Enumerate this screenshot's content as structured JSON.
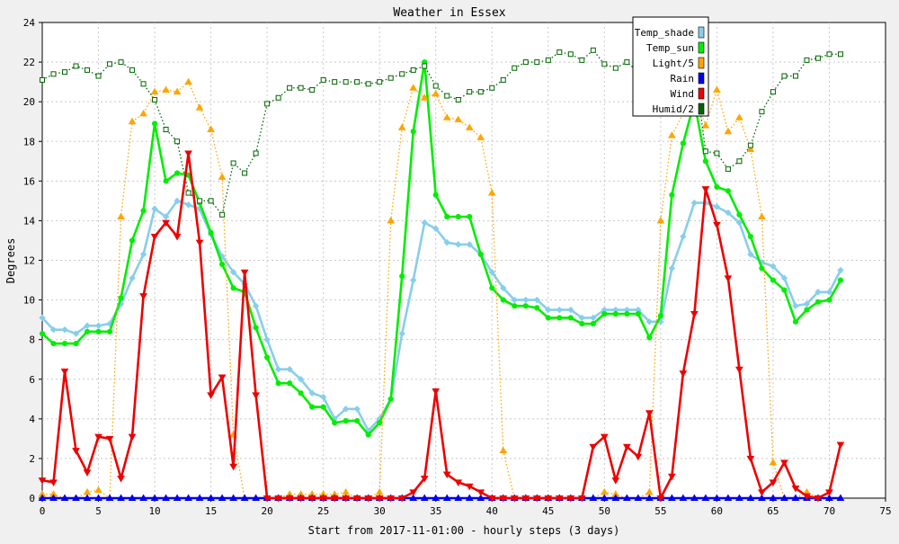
{
  "chart_data": {
    "type": "line",
    "title": "Weather in Essex",
    "xlabel": "Start from 2017-11-01:00 - hourly steps (3 days)",
    "ylabel": "Degrees",
    "xlim": [
      0,
      75
    ],
    "ylim": [
      0,
      24
    ],
    "x_ticks": [
      0,
      5,
      10,
      15,
      20,
      25,
      30,
      35,
      40,
      45,
      50,
      55,
      60,
      65,
      70,
      75
    ],
    "y_ticks": [
      0,
      2,
      4,
      6,
      8,
      10,
      12,
      14,
      16,
      18,
      20,
      22,
      24
    ],
    "grid": true,
    "legend_position": "top-right",
    "series": [
      {
        "name": "Temp_shade",
        "color": "#87ceeb",
        "line": "solid",
        "marker": "star",
        "values": [
          9.1,
          8.5,
          8.5,
          8.3,
          8.7,
          8.7,
          8.8,
          9.8,
          11.1,
          12.3,
          14.6,
          14.2,
          15.0,
          14.8,
          14.6,
          13.3,
          12.2,
          11.4,
          10.8,
          9.7,
          8.0,
          6.5,
          6.5,
          6.0,
          5.3,
          5.1,
          4.0,
          4.5,
          4.5,
          3.4,
          4.0,
          5.0,
          8.3,
          11.0,
          13.9,
          13.6,
          12.9,
          12.8,
          12.8,
          12.3,
          11.4,
          10.6,
          10.0,
          10.0,
          10.0,
          9.5,
          9.5,
          9.5,
          9.1,
          9.1,
          9.5,
          9.5,
          9.5,
          9.5,
          8.9,
          8.9,
          11.6,
          13.2,
          14.9,
          14.9,
          14.7,
          14.4,
          13.9,
          12.3,
          11.9,
          11.7,
          11.1,
          9.7,
          9.8,
          10.4,
          10.4,
          11.5
        ]
      },
      {
        "name": "Temp_sun",
        "color": "#00ee00",
        "line": "solid",
        "marker": "circle",
        "values": [
          8.3,
          7.8,
          7.8,
          7.8,
          8.4,
          8.4,
          8.4,
          10.1,
          13.0,
          14.5,
          18.9,
          16.0,
          16.4,
          16.3,
          14.9,
          13.4,
          11.8,
          10.6,
          10.4,
          8.6,
          7.1,
          5.8,
          5.8,
          5.3,
          4.6,
          4.6,
          3.8,
          3.9,
          3.9,
          3.2,
          3.8,
          5.0,
          11.2,
          18.5,
          22.0,
          15.3,
          14.2,
          14.2,
          14.2,
          12.3,
          10.6,
          10.0,
          9.7,
          9.7,
          9.6,
          9.1,
          9.1,
          9.1,
          8.8,
          8.8,
          9.3,
          9.3,
          9.3,
          9.3,
          8.1,
          9.2,
          15.3,
          17.9,
          20.0,
          17.0,
          15.7,
          15.5,
          14.3,
          13.2,
          11.6,
          11.0,
          10.5,
          8.9,
          9.5,
          9.9,
          10.0,
          11.0
        ]
      },
      {
        "name": "Light/5",
        "color": "#ffa500",
        "line": "dotted",
        "marker": "triangle-up",
        "values": [
          0.2,
          0.2,
          0.0,
          0.0,
          0.3,
          0.4,
          0.0,
          14.2,
          19.0,
          19.4,
          20.5,
          20.6,
          20.5,
          21.0,
          19.7,
          18.6,
          16.2,
          3.2,
          0.0,
          0.0,
          0.0,
          0.0,
          0.2,
          0.2,
          0.2,
          0.2,
          0.2,
          0.3,
          0.0,
          0.0,
          0.3,
          14.0,
          18.7,
          20.7,
          20.2,
          20.4,
          19.2,
          19.1,
          18.7,
          18.2,
          15.4,
          2.4,
          0.0,
          0.0,
          0.0,
          0.0,
          0.0,
          0.0,
          0.0,
          0.0,
          0.3,
          0.2,
          0.0,
          0.0,
          0.3,
          14.0,
          18.3,
          19.4,
          20.4,
          18.8,
          20.6,
          18.5,
          19.2,
          17.6,
          14.2,
          1.8,
          0.0,
          0.0,
          0.3,
          0.0,
          0.0,
          0.0
        ]
      },
      {
        "name": "Rain",
        "color": "#0000ee",
        "line": "solid",
        "marker": "triangle-up",
        "values": [
          0,
          0,
          0,
          0,
          0,
          0,
          0,
          0,
          0,
          0,
          0,
          0,
          0,
          0,
          0,
          0,
          0,
          0,
          0,
          0,
          0,
          0,
          0,
          0,
          0,
          0,
          0,
          0,
          0,
          0,
          0,
          0,
          0,
          0,
          0,
          0,
          0,
          0,
          0,
          0,
          0,
          0,
          0,
          0,
          0,
          0,
          0,
          0,
          0,
          0,
          0,
          0,
          0,
          0,
          0,
          0,
          0,
          0,
          0,
          0,
          0,
          0,
          0,
          0,
          0,
          0,
          0,
          0,
          0,
          0,
          0,
          0
        ]
      },
      {
        "name": "Wind",
        "color": "#ee0000",
        "line": "solid",
        "marker": "triangle-down",
        "values": [
          0.9,
          0.8,
          6.4,
          2.4,
          1.3,
          3.1,
          3.0,
          1.0,
          3.1,
          10.2,
          13.2,
          13.9,
          13.2,
          17.4,
          12.9,
          5.2,
          6.1,
          1.6,
          11.4,
          5.2,
          0.0,
          0.0,
          0.0,
          0.0,
          0.0,
          0.0,
          0.0,
          0.0,
          0.0,
          0.0,
          0.0,
          0.0,
          0.0,
          0.3,
          1.0,
          5.4,
          1.2,
          0.8,
          0.6,
          0.3,
          0.0,
          0.0,
          0.0,
          0.0,
          0.0,
          0.0,
          0.0,
          0.0,
          0.0,
          2.6,
          3.1,
          0.9,
          2.6,
          2.1,
          4.3,
          0.0,
          1.1,
          6.3,
          9.3,
          15.6,
          13.8,
          11.1,
          6.5,
          2.0,
          0.3,
          0.8,
          1.8,
          0.5,
          0.1,
          0.0,
          0.3,
          2.7
        ]
      },
      {
        "name": "Humid/2",
        "color": "#006400",
        "line": "dotted",
        "marker": "square",
        "values": [
          21.1,
          21.4,
          21.5,
          21.8,
          21.6,
          21.3,
          21.9,
          22.0,
          21.6,
          20.9,
          20.1,
          18.6,
          18.0,
          15.4,
          15.0,
          15.0,
          14.3,
          16.9,
          16.4,
          17.4,
          19.9,
          20.2,
          20.7,
          20.7,
          20.6,
          21.1,
          21.0,
          21.0,
          21.0,
          20.9,
          21.0,
          21.2,
          21.4,
          21.6,
          21.8,
          20.8,
          20.3,
          20.1,
          20.5,
          20.5,
          20.7,
          21.1,
          21.7,
          22.0,
          22.0,
          22.1,
          22.5,
          22.4,
          22.1,
          22.6,
          21.9,
          21.7,
          22.0,
          21.5,
          21.2,
          21.0,
          21.5,
          22.0,
          21.8,
          17.5,
          17.4,
          16.6,
          17.0,
          17.8,
          19.5,
          20.5,
          21.3,
          21.3,
          22.1,
          22.2,
          22.4,
          22.4
        ]
      }
    ]
  }
}
